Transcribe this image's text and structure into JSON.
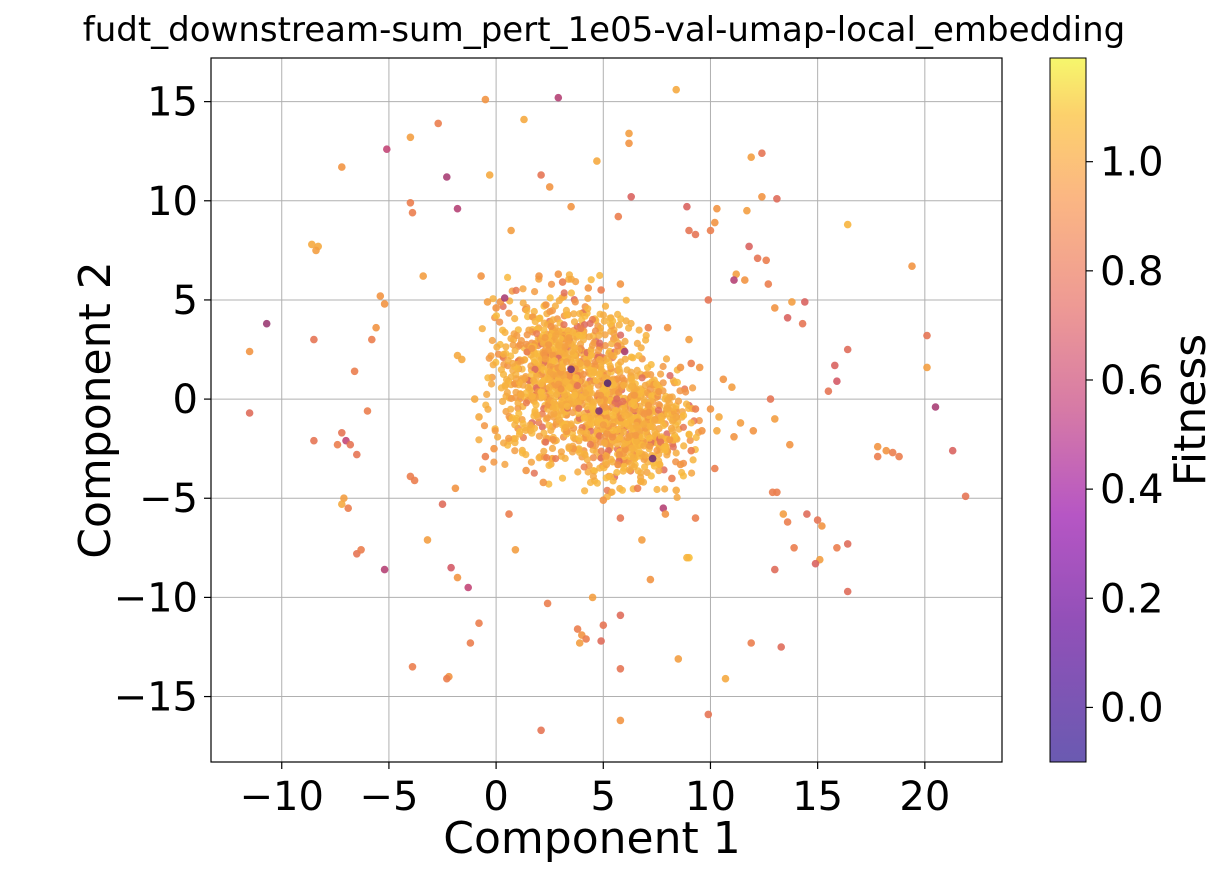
{
  "chart_data": {
    "type": "scatter",
    "title": "fudt_downstream-sum_pert_1e05-val-umap-local_embedding",
    "xlabel": "Component 1",
    "ylabel": "Component 2",
    "xlim": [
      -13.3,
      23.6
    ],
    "ylim": [
      -18.3,
      17.2
    ],
    "x_ticks": [
      -10,
      -5,
      0,
      5,
      10,
      15,
      20
    ],
    "x_tick_labels": [
      "−10",
      "−5",
      "0",
      "5",
      "10",
      "15",
      "20"
    ],
    "y_ticks": [
      -15,
      -10,
      -5,
      0,
      5,
      10,
      15
    ],
    "y_tick_labels": [
      "−15",
      "−10",
      "−5",
      "0",
      "5",
      "10",
      "15"
    ],
    "grid": true,
    "colormap": "plasma",
    "colorbar": {
      "label": "Fitness",
      "range": [
        -0.1,
        1.19
      ],
      "ticks": [
        0.0,
        0.2,
        0.4,
        0.6,
        0.8,
        1.0
      ],
      "tick_labels": [
        "0.0",
        "0.2",
        "0.4",
        "0.6",
        "0.8",
        "1.0"
      ]
    },
    "cluster": {
      "description_note": "dense central cloud of points",
      "center": [
        4.0,
        0.0
      ],
      "x_range": [
        -1.0,
        9.5
      ],
      "y_range": [
        -5.0,
        6.3
      ],
      "typical_fitness": 0.95
    },
    "points": [
      {
        "x": 8.4,
        "y": 15.6,
        "f": 1.0
      },
      {
        "x": 2.9,
        "y": 15.2,
        "f": 0.55
      },
      {
        "x": -0.5,
        "y": 15.1,
        "f": 0.9
      },
      {
        "x": 1.3,
        "y": 14.1,
        "f": 1.0
      },
      {
        "x": -2.7,
        "y": 13.9,
        "f": 0.85
      },
      {
        "x": -4.0,
        "y": 13.2,
        "f": 0.95
      },
      {
        "x": 6.2,
        "y": 13.4,
        "f": 0.95
      },
      {
        "x": 6.2,
        "y": 12.9,
        "f": 0.9
      },
      {
        "x": -5.1,
        "y": 12.6,
        "f": 0.6
      },
      {
        "x": 12.4,
        "y": 12.4,
        "f": 0.8
      },
      {
        "x": 11.9,
        "y": 12.2,
        "f": 0.95
      },
      {
        "x": 4.7,
        "y": 12.0,
        "f": 1.0
      },
      {
        "x": -7.2,
        "y": 11.7,
        "f": 0.9
      },
      {
        "x": 2.1,
        "y": 11.3,
        "f": 0.8
      },
      {
        "x": -0.3,
        "y": 11.3,
        "f": 1.0
      },
      {
        "x": -2.3,
        "y": 11.2,
        "f": 0.5
      },
      {
        "x": 2.5,
        "y": 10.7,
        "f": 0.9
      },
      {
        "x": 6.3,
        "y": 10.2,
        "f": 0.7
      },
      {
        "x": 12.4,
        "y": 10.2,
        "f": 0.9
      },
      {
        "x": 13.1,
        "y": 10.1,
        "f": 0.75
      },
      {
        "x": -4.0,
        "y": 9.9,
        "f": 0.85
      },
      {
        "x": 8.9,
        "y": 9.7,
        "f": 0.7
      },
      {
        "x": 3.5,
        "y": 9.7,
        "f": 0.9
      },
      {
        "x": -1.8,
        "y": 9.6,
        "f": 0.55
      },
      {
        "x": -3.9,
        "y": 9.4,
        "f": 0.85
      },
      {
        "x": 11.7,
        "y": 9.5,
        "f": 0.95
      },
      {
        "x": 10.3,
        "y": 9.6,
        "f": 0.9
      },
      {
        "x": 5.7,
        "y": 9.2,
        "f": 0.85
      },
      {
        "x": 10.2,
        "y": 8.9,
        "f": 0.9
      },
      {
        "x": 16.4,
        "y": 8.8,
        "f": 1.05
      },
      {
        "x": 0.7,
        "y": 8.5,
        "f": 0.95
      },
      {
        "x": 9.0,
        "y": 8.5,
        "f": 0.8
      },
      {
        "x": 10.0,
        "y": 8.5,
        "f": 0.85
      },
      {
        "x": 9.3,
        "y": 8.3,
        "f": 0.8
      },
      {
        "x": -8.6,
        "y": 7.8,
        "f": 1.0
      },
      {
        "x": -8.3,
        "y": 7.7,
        "f": 1.0
      },
      {
        "x": -8.4,
        "y": 7.5,
        "f": 0.95
      },
      {
        "x": 11.8,
        "y": 7.7,
        "f": 0.7
      },
      {
        "x": 12.2,
        "y": 7.1,
        "f": 0.8
      },
      {
        "x": 12.6,
        "y": 7.0,
        "f": 0.85
      },
      {
        "x": 19.4,
        "y": 6.7,
        "f": 0.9
      },
      {
        "x": 11.2,
        "y": 6.3,
        "f": 0.95
      },
      {
        "x": 11.6,
        "y": 6.0,
        "f": 0.9
      },
      {
        "x": 11.1,
        "y": 6.0,
        "f": 0.55
      },
      {
        "x": -3.4,
        "y": 6.2,
        "f": 0.95
      },
      {
        "x": -0.7,
        "y": 6.2,
        "f": 0.9
      },
      {
        "x": 12.7,
        "y": 5.8,
        "f": 0.85
      },
      {
        "x": -5.4,
        "y": 5.2,
        "f": 0.9
      },
      {
        "x": -5.2,
        "y": 4.8,
        "f": 0.9
      },
      {
        "x": 9.9,
        "y": 5.0,
        "f": 0.8
      },
      {
        "x": 13.0,
        "y": 4.6,
        "f": 0.9
      },
      {
        "x": 13.8,
        "y": 4.9,
        "f": 0.95
      },
      {
        "x": 14.4,
        "y": 4.9,
        "f": 0.7
      },
      {
        "x": 13.6,
        "y": 4.1,
        "f": 0.7
      },
      {
        "x": 14.3,
        "y": 3.8,
        "f": 0.8
      },
      {
        "x": -10.7,
        "y": 3.8,
        "f": 0.45
      },
      {
        "x": -5.6,
        "y": 3.6,
        "f": 0.9
      },
      {
        "x": -5.8,
        "y": 3.0,
        "f": 0.85
      },
      {
        "x": -8.5,
        "y": 3.0,
        "f": 0.8
      },
      {
        "x": 20.1,
        "y": 3.2,
        "f": 0.8
      },
      {
        "x": 16.4,
        "y": 2.5,
        "f": 0.75
      },
      {
        "x": -11.5,
        "y": 2.4,
        "f": 0.9
      },
      {
        "x": -1.8,
        "y": 2.2,
        "f": 1.0
      },
      {
        "x": -1.6,
        "y": 2.0,
        "f": 1.0
      },
      {
        "x": 15.8,
        "y": 1.7,
        "f": 0.7
      },
      {
        "x": 20.1,
        "y": 1.6,
        "f": 0.95
      },
      {
        "x": -6.6,
        "y": 1.4,
        "f": 0.85
      },
      {
        "x": 10.6,
        "y": 1.0,
        "f": 0.9
      },
      {
        "x": 11.0,
        "y": 0.6,
        "f": 0.95
      },
      {
        "x": 15.9,
        "y": 0.9,
        "f": 0.65
      },
      {
        "x": 15.5,
        "y": 0.4,
        "f": 0.8
      },
      {
        "x": 12.8,
        "y": 0.0,
        "f": 0.8
      },
      {
        "x": 20.5,
        "y": -0.4,
        "f": 0.5
      },
      {
        "x": -11.5,
        "y": -0.7,
        "f": 0.75
      },
      {
        "x": -6.0,
        "y": -0.6,
        "f": 0.85
      },
      {
        "x": 10.0,
        "y": -0.5,
        "f": 0.9
      },
      {
        "x": 10.4,
        "y": -0.9,
        "f": 1.0
      },
      {
        "x": 11.4,
        "y": -1.2,
        "f": 0.95
      },
      {
        "x": 12.0,
        "y": -1.6,
        "f": 0.9
      },
      {
        "x": 10.3,
        "y": -1.6,
        "f": 1.0
      },
      {
        "x": 11.1,
        "y": -1.9,
        "f": 0.9
      },
      {
        "x": 13.0,
        "y": -1.0,
        "f": 0.95
      },
      {
        "x": 13.7,
        "y": -2.3,
        "f": 0.9
      },
      {
        "x": -8.5,
        "y": -2.1,
        "f": 0.8
      },
      {
        "x": -7.2,
        "y": -1.7,
        "f": 0.8
      },
      {
        "x": -7.0,
        "y": -2.1,
        "f": 0.6
      },
      {
        "x": -7.4,
        "y": -2.3,
        "f": 0.85
      },
      {
        "x": -6.8,
        "y": -2.3,
        "f": 0.8
      },
      {
        "x": -6.5,
        "y": -2.8,
        "f": 0.8
      },
      {
        "x": -4.0,
        "y": -3.9,
        "f": 0.85
      },
      {
        "x": -3.8,
        "y": -4.1,
        "f": 0.85
      },
      {
        "x": -1.9,
        "y": -4.5,
        "f": 0.9
      },
      {
        "x": 21.3,
        "y": -2.6,
        "f": 0.7
      },
      {
        "x": 17.8,
        "y": -2.4,
        "f": 0.9
      },
      {
        "x": 18.2,
        "y": -2.6,
        "f": 0.9
      },
      {
        "x": 18.5,
        "y": -2.7,
        "f": 0.85
      },
      {
        "x": 18.8,
        "y": -2.9,
        "f": 0.85
      },
      {
        "x": 17.8,
        "y": -2.9,
        "f": 0.85
      },
      {
        "x": 10.2,
        "y": -3.5,
        "f": 0.85
      },
      {
        "x": 12.9,
        "y": -4.7,
        "f": 0.85
      },
      {
        "x": 13.1,
        "y": -4.7,
        "f": 0.85
      },
      {
        "x": 21.9,
        "y": -4.9,
        "f": 0.8
      },
      {
        "x": -7.1,
        "y": -5.0,
        "f": 0.95
      },
      {
        "x": -7.2,
        "y": -5.3,
        "f": 1.0
      },
      {
        "x": -6.9,
        "y": -5.5,
        "f": 0.85
      },
      {
        "x": -2.5,
        "y": -5.3,
        "f": 0.75
      },
      {
        "x": 7.8,
        "y": -5.5,
        "f": 0.55
      },
      {
        "x": 7.9,
        "y": -5.8,
        "f": 0.9
      },
      {
        "x": 13.4,
        "y": -5.8,
        "f": 0.95
      },
      {
        "x": 13.6,
        "y": -6.2,
        "f": 0.85
      },
      {
        "x": 14.5,
        "y": -5.8,
        "f": 0.75
      },
      {
        "x": 15.0,
        "y": -6.1,
        "f": 0.8
      },
      {
        "x": 15.2,
        "y": -6.4,
        "f": 0.9
      },
      {
        "x": 0.6,
        "y": -5.8,
        "f": 0.85
      },
      {
        "x": 5.8,
        "y": -6.0,
        "f": 0.8
      },
      {
        "x": 9.3,
        "y": -6.0,
        "f": 0.85
      },
      {
        "x": -3.2,
        "y": -7.1,
        "f": 0.95
      },
      {
        "x": 6.8,
        "y": -7.1,
        "f": 0.95
      },
      {
        "x": 0.9,
        "y": -7.6,
        "f": 0.95
      },
      {
        "x": -6.5,
        "y": -7.8,
        "f": 0.8
      },
      {
        "x": -6.3,
        "y": -7.6,
        "f": 0.85
      },
      {
        "x": 13.9,
        "y": -7.5,
        "f": 0.85
      },
      {
        "x": 15.9,
        "y": -7.5,
        "f": 0.85
      },
      {
        "x": 16.4,
        "y": -7.3,
        "f": 0.75
      },
      {
        "x": 15.1,
        "y": -8.1,
        "f": 0.95
      },
      {
        "x": 9.0,
        "y": -8.0,
        "f": 1.1
      },
      {
        "x": 8.9,
        "y": -8.0,
        "f": 1.05
      },
      {
        "x": 14.9,
        "y": -8.3,
        "f": 0.7
      },
      {
        "x": -2.1,
        "y": -8.5,
        "f": 0.65
      },
      {
        "x": -5.2,
        "y": -8.6,
        "f": 0.55
      },
      {
        "x": 13.0,
        "y": -8.6,
        "f": 0.75
      },
      {
        "x": -1.8,
        "y": -9.0,
        "f": 0.9
      },
      {
        "x": 7.2,
        "y": -9.1,
        "f": 0.9
      },
      {
        "x": -1.3,
        "y": -9.5,
        "f": 0.6
      },
      {
        "x": 16.4,
        "y": -9.7,
        "f": 0.75
      },
      {
        "x": 4.5,
        "y": -10.0,
        "f": 0.95
      },
      {
        "x": 2.4,
        "y": -10.3,
        "f": 0.85
      },
      {
        "x": 5.8,
        "y": -10.9,
        "f": 0.75
      },
      {
        "x": -0.8,
        "y": -11.3,
        "f": 0.85
      },
      {
        "x": 5.0,
        "y": -11.4,
        "f": 0.8
      },
      {
        "x": 3.8,
        "y": -11.6,
        "f": 0.85
      },
      {
        "x": 4.0,
        "y": -11.9,
        "f": 0.9
      },
      {
        "x": 4.2,
        "y": -12.1,
        "f": 0.85
      },
      {
        "x": 3.9,
        "y": -12.3,
        "f": 0.95
      },
      {
        "x": -1.2,
        "y": -12.3,
        "f": 0.85
      },
      {
        "x": 4.9,
        "y": -12.2,
        "f": 0.75
      },
      {
        "x": 11.9,
        "y": -12.3,
        "f": 0.85
      },
      {
        "x": 13.3,
        "y": -12.5,
        "f": 0.75
      },
      {
        "x": 8.5,
        "y": -13.1,
        "f": 0.95
      },
      {
        "x": -3.9,
        "y": -13.5,
        "f": 0.85
      },
      {
        "x": 5.8,
        "y": -13.6,
        "f": 0.8
      },
      {
        "x": -2.2,
        "y": -14.0,
        "f": 0.9
      },
      {
        "x": -2.3,
        "y": -14.1,
        "f": 0.85
      },
      {
        "x": 10.7,
        "y": -14.1,
        "f": 1.0
      },
      {
        "x": 9.9,
        "y": -15.9,
        "f": 0.8
      },
      {
        "x": 5.8,
        "y": -16.2,
        "f": 0.9
      },
      {
        "x": 2.1,
        "y": -16.7,
        "f": 0.8
      },
      {
        "x": 0.2,
        "y": 4.9,
        "f": 0.9
      },
      {
        "x": 0.4,
        "y": 5.1,
        "f": 0.5
      },
      {
        "x": -0.4,
        "y": 4.9,
        "f": 0.95
      },
      {
        "x": 0.0,
        "y": 4.6,
        "f": 0.9
      },
      {
        "x": 8.0,
        "y": 3.6,
        "f": 0.9
      },
      {
        "x": 7.1,
        "y": 3.6,
        "f": 0.85
      },
      {
        "x": 9.0,
        "y": 3.0,
        "f": 0.95
      },
      {
        "x": 8.6,
        "y": 1.6,
        "f": 0.9
      },
      {
        "x": 9.1,
        "y": 1.8,
        "f": 0.85
      },
      {
        "x": 9.5,
        "y": 1.6,
        "f": 0.9
      },
      {
        "x": 9.3,
        "y": -0.5,
        "f": 0.85
      },
      {
        "x": 9.6,
        "y": -1.6,
        "f": 0.9
      },
      {
        "x": 9.1,
        "y": -2.6,
        "f": 0.85
      },
      {
        "x": 8.6,
        "y": -3.3,
        "f": 0.9
      },
      {
        "x": 8.2,
        "y": -4.0,
        "f": 0.85
      },
      {
        "x": 8.4,
        "y": -4.6,
        "f": 1.0
      },
      {
        "x": 6.6,
        "y": -4.5,
        "f": 0.85
      },
      {
        "x": 7.3,
        "y": -3.0,
        "f": 0.3
      },
      {
        "x": 6.0,
        "y": 2.4,
        "f": 0.5
      },
      {
        "x": 4.8,
        "y": -0.6,
        "f": 0.35
      },
      {
        "x": 3.5,
        "y": 1.5,
        "f": 0.3
      },
      {
        "x": 5.2,
        "y": 0.8,
        "f": 0.2
      },
      {
        "x": 5.0,
        "y": -5.1,
        "f": 0.9
      },
      {
        "x": 2.2,
        "y": -4.2,
        "f": 0.9
      },
      {
        "x": 1.4,
        "y": -3.6,
        "f": 0.9
      },
      {
        "x": -0.5,
        "y": -2.9,
        "f": 0.85
      },
      {
        "x": -0.1,
        "y": -2.5,
        "f": 0.9
      },
      {
        "x": -1.0,
        "y": 0.0,
        "f": 1.0
      },
      {
        "x": -0.8,
        "y": -0.9,
        "f": 1.0
      },
      {
        "x": 2.0,
        "y": 6.2,
        "f": 0.9
      },
      {
        "x": 2.9,
        "y": 6.3,
        "f": 0.9
      },
      {
        "x": 3.1,
        "y": 5.9,
        "f": 0.85
      },
      {
        "x": 4.3,
        "y": 5.6,
        "f": 0.9
      },
      {
        "x": 4.9,
        "y": 5.5,
        "f": 0.85
      },
      {
        "x": 5.8,
        "y": 5.8,
        "f": 0.9
      }
    ]
  }
}
